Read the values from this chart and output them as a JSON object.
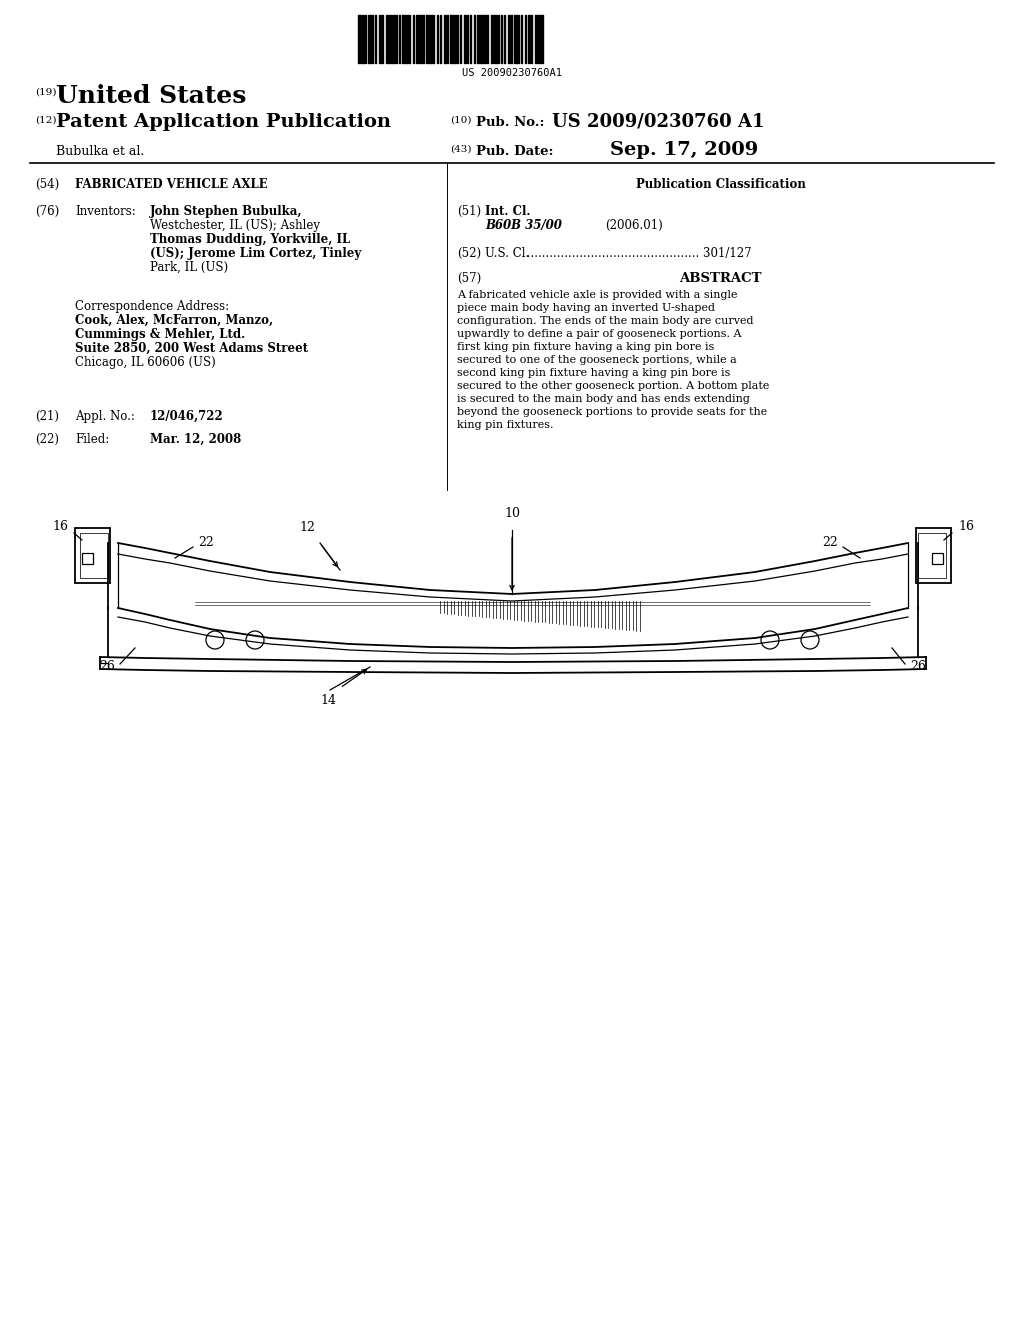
{
  "background_color": "#ffffff",
  "barcode_text": "US 20090230760A1",
  "patent_number": "US 2009/0230760 A1",
  "pub_date": "Sep. 17, 2009",
  "country": "United States",
  "patent_type": "Patent Application Publication",
  "assignee": "Bubulka et al.",
  "pub_no_label": "Pub. No.:",
  "pub_date_label": "Pub. Date:",
  "title_54": "FABRICATED VEHICLE AXLE",
  "inventors_label": "Inventors:",
  "inventors_lines": [
    [
      "John Stephen Bubulka",
      "bold"
    ],
    [
      ",",
      "normal"
    ],
    [
      "Westchester, IL (US); Ashley",
      "normal"
    ],
    [
      "Thomas Dudding",
      "bold"
    ],
    [
      ", Yorkville, IL",
      "normal"
    ],
    [
      "(US); Jerome Lim Cortez",
      "bold"
    ],
    [
      ", Tinley",
      "normal"
    ],
    [
      "Park, IL (US)",
      "normal"
    ]
  ],
  "inv_display": [
    [
      "John Stephen Bubulka,",
      true
    ],
    [
      "Westchester, IL (US); Ashley",
      false
    ],
    [
      "Thomas Dudding, Yorkville, IL",
      true
    ],
    [
      "(US); Jerome Lim Cortez, Tinley",
      true
    ],
    [
      "Park, IL (US)",
      false
    ]
  ],
  "corr_addr_label": "Correspondence Address:",
  "corr_addr_lines": [
    [
      "Cook, Alex, McFarron, Manzo,",
      true
    ],
    [
      "Cummings & Mehler, Ltd.",
      true
    ],
    [
      "Suite 2850, 200 West Adams Street",
      true
    ],
    [
      "Chicago, IL 60606 (US)",
      false
    ]
  ],
  "appl_no_label": "Appl. No.:",
  "appl_no_value": "12/046,722",
  "filed_label": "Filed:",
  "filed_value": "Mar. 12, 2008",
  "pub_class_label": "Publication Classification",
  "int_cl_label": "Int. Cl.",
  "int_cl_value": "B60B 35/00",
  "int_cl_year": "(2006.01)",
  "us_cl_label": "U.S. Cl.",
  "us_cl_value": "301/127",
  "abstract_label": "ABSTRACT",
  "abstract_text": "A fabricated vehicle axle is provided with a single piece main body having an inverted U-shaped configuration. The ends of the main body are curved upwardly to define a pair of gooseneck portions. A first king pin fixture having a king pin bore is secured to one of the gooseneck portions, while a second king pin fixture having a king pin bore is secured to the other gooseneck portion. A bottom plate is secured to the main body and has ends extending beyond the gooseneck portions to provide seats for the king pin fixtures."
}
